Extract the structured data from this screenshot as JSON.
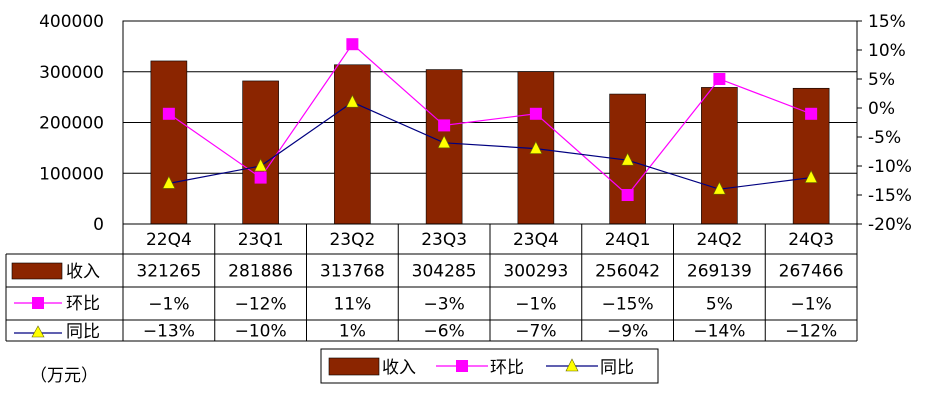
{
  "chart_data": {
    "type": "bar",
    "categories": [
      "22Q4",
      "23Q1",
      "23Q2",
      "23Q3",
      "23Q4",
      "24Q1",
      "24Q2",
      "24Q3"
    ],
    "series": [
      {
        "name": "收入",
        "type": "bar",
        "axis": "left",
        "color": "#8B2500",
        "values": [
          321265,
          281886,
          313768,
          304285,
          300293,
          256042,
          269139,
          267466
        ],
        "table_labels": [
          "321265",
          "281886",
          "313768",
          "304285",
          "300293",
          "256042",
          "269139",
          "267466"
        ]
      },
      {
        "name": "环比",
        "type": "line",
        "axis": "right",
        "color": "#FF00FF",
        "marker": "square",
        "values": [
          -1,
          -12,
          11,
          -3,
          -1,
          -15,
          5,
          -1
        ],
        "table_labels": [
          "−1%",
          "−12%",
          "11%",
          "−3%",
          "−1%",
          "−15%",
          "5%",
          "−1%"
        ]
      },
      {
        "name": "同比",
        "type": "line",
        "axis": "right",
        "color": "#000080",
        "marker": "triangle",
        "marker_color": "#FFFF00",
        "values": [
          -13,
          -10,
          1,
          -6,
          -7,
          -9,
          -14,
          -12
        ],
        "table_labels": [
          "−13%",
          "−10%",
          "1%",
          "−6%",
          "−7%",
          "−9%",
          "−14%",
          "−12%"
        ]
      }
    ],
    "ylim_left": [
      0,
      400000
    ],
    "yticks_left": [
      "400000",
      "300000",
      "200000",
      "100000",
      "0"
    ],
    "ylim_right": [
      -20,
      15
    ],
    "yticks_right": [
      "15%",
      "10%",
      "5%",
      "0%",
      "-5%",
      "-10%",
      "-15%",
      "-20%"
    ],
    "grid": "horizontal",
    "legend_placement": "bottom-center",
    "unit_label": "（万元）"
  }
}
